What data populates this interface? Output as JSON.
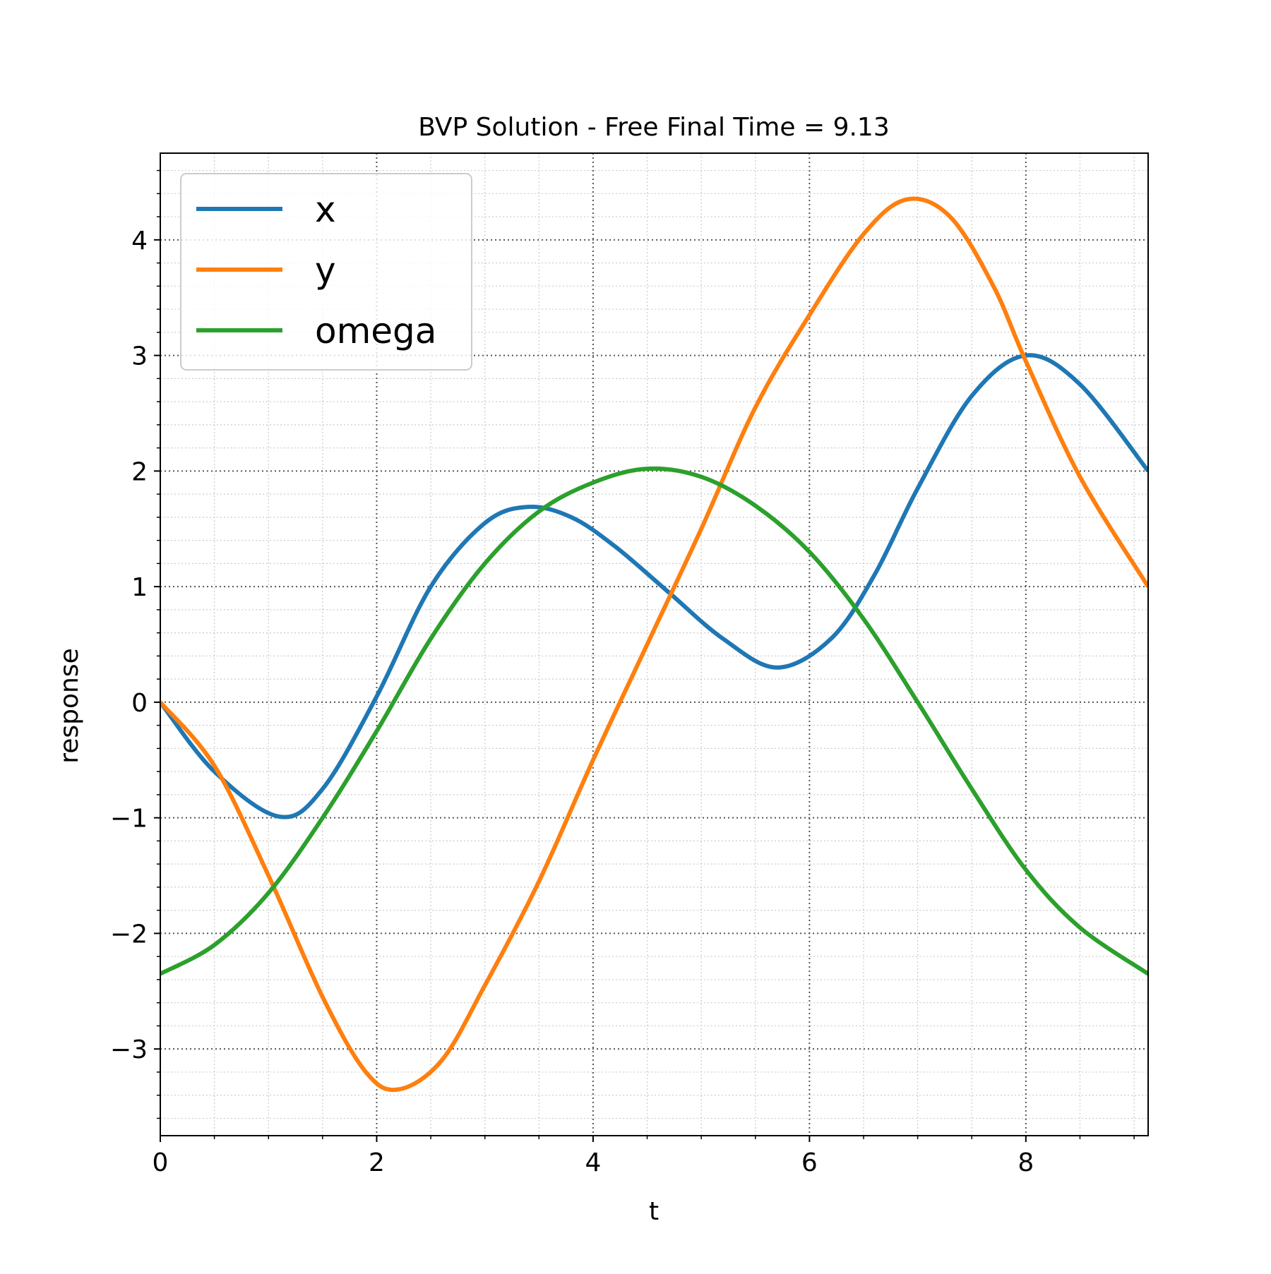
{
  "chart_data": {
    "type": "line",
    "title": "BVP Solution - Free Final Time = 9.13",
    "xlabel": "t",
    "ylabel": "response",
    "xlim": [
      0,
      9.13
    ],
    "ylim": [
      -3.75,
      4.75
    ],
    "xticks": [
      {
        "value": 0,
        "label": "0"
      },
      {
        "value": 2,
        "label": "2"
      },
      {
        "value": 4,
        "label": "4"
      },
      {
        "value": 6,
        "label": "6"
      },
      {
        "value": 8,
        "label": "8"
      }
    ],
    "yticks": [
      {
        "value": -3,
        "label": "−3"
      },
      {
        "value": -2,
        "label": "−2"
      },
      {
        "value": -1,
        "label": "−1"
      },
      {
        "value": 0,
        "label": "0"
      },
      {
        "value": 1,
        "label": "1"
      },
      {
        "value": 2,
        "label": "2"
      },
      {
        "value": 3,
        "label": "3"
      },
      {
        "value": 4,
        "label": "4"
      }
    ],
    "grid": true,
    "minor_grid": true,
    "legend_position": "upper-left",
    "series": [
      {
        "name": "x",
        "color": "#1f77b4",
        "points": [
          [
            0.0,
            0.0
          ],
          [
            0.5,
            -0.6
          ],
          [
            1.1,
            -0.99
          ],
          [
            1.5,
            -0.75
          ],
          [
            2.0,
            0.05
          ],
          [
            2.5,
            1.0
          ],
          [
            3.0,
            1.55
          ],
          [
            3.4,
            1.69
          ],
          [
            3.8,
            1.6
          ],
          [
            4.2,
            1.35
          ],
          [
            4.7,
            0.95
          ],
          [
            5.2,
            0.55
          ],
          [
            5.7,
            0.3
          ],
          [
            6.2,
            0.55
          ],
          [
            6.6,
            1.1
          ],
          [
            7.0,
            1.85
          ],
          [
            7.5,
            2.65
          ],
          [
            8.0,
            3.0
          ],
          [
            8.5,
            2.75
          ],
          [
            9.13,
            2.0
          ]
        ]
      },
      {
        "name": "y",
        "color": "#ff7f0e",
        "points": [
          [
            0.0,
            0.0
          ],
          [
            0.5,
            -0.55
          ],
          [
            1.0,
            -1.5
          ],
          [
            1.5,
            -2.55
          ],
          [
            1.9,
            -3.2
          ],
          [
            2.2,
            -3.35
          ],
          [
            2.6,
            -3.1
          ],
          [
            3.0,
            -2.45
          ],
          [
            3.5,
            -1.55
          ],
          [
            4.0,
            -0.5
          ],
          [
            4.5,
            0.5
          ],
          [
            5.0,
            1.5
          ],
          [
            5.5,
            2.55
          ],
          [
            6.0,
            3.35
          ],
          [
            6.5,
            4.05
          ],
          [
            6.9,
            4.35
          ],
          [
            7.3,
            4.2
          ],
          [
            7.7,
            3.6
          ],
          [
            8.0,
            2.95
          ],
          [
            8.5,
            1.95
          ],
          [
            9.13,
            1.0
          ]
        ]
      },
      {
        "name": "omega",
        "color": "#2ca02c",
        "points": [
          [
            0.0,
            -2.35
          ],
          [
            0.5,
            -2.1
          ],
          [
            1.0,
            -1.65
          ],
          [
            1.5,
            -1.0
          ],
          [
            2.0,
            -0.25
          ],
          [
            2.5,
            0.55
          ],
          [
            3.0,
            1.2
          ],
          [
            3.5,
            1.65
          ],
          [
            4.0,
            1.9
          ],
          [
            4.5,
            2.02
          ],
          [
            5.0,
            1.95
          ],
          [
            5.5,
            1.7
          ],
          [
            6.0,
            1.3
          ],
          [
            6.5,
            0.72
          ],
          [
            7.0,
            0.0
          ],
          [
            7.5,
            -0.75
          ],
          [
            8.0,
            -1.45
          ],
          [
            8.5,
            -1.95
          ],
          [
            9.13,
            -2.35
          ]
        ]
      }
    ]
  }
}
